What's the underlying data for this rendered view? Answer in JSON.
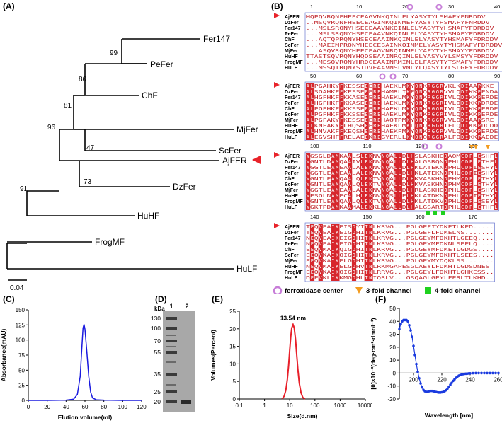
{
  "panels": {
    "A": "(A)",
    "B": "(B)",
    "C": "(C)",
    "D": "(D)",
    "E": "(E)",
    "F": "(F)"
  },
  "tree": {
    "leaves": [
      "Fer147",
      "PeFer",
      "ChF",
      "MjFer",
      "ScFer",
      "AjFER",
      "DzFer",
      "HuHF",
      "FrogMF",
      "HuLF"
    ],
    "bootstrap": [
      "99",
      "86",
      "81",
      "47",
      "96",
      "73",
      "91"
    ],
    "scale_label": "0.04",
    "highlight_color": "#e8232a"
  },
  "alignment": {
    "species": [
      "AjFER",
      "DzFer",
      "Fer147",
      "PeFer",
      "ChF",
      "ScFer",
      "MjFer",
      "HuHF",
      "FrogMF",
      "HuLF"
    ],
    "blocks": [
      {
        "positions": [
          "1",
          "10",
          "20",
          "30",
          "40"
        ],
        "rows": [
          "MQPQVRQNFHEECEAGVNKQINLELYASYTYLSMAFYFNRDDV",
          "..MSQVRQNFHEECEAGINKQINMEFYASYTYHSMAFYFNRDDV",
          "...MSLSRQNYHSECEAAVNKQINLELYASYTYHSMAFYFDRDDV",
          "...MSLSRQNYHSECEAAVNKQINLELYASYTYHSMAFYFDRDDV",
          "...AQTQPRQNYHSECEAAINKQINLELYASYTYHSMAFYFDRDDV",
          "...MAEIMPRQNYHEECESAINKQINMELYASYTYHSMAFYFDRDDV",
          "...ASQVRQNYHEECEAGVNRQINMELYAFYTYHSMAYYFDRDDV",
          "TTASTSQVRQNYHQDSEAAINRQINLELYASYVYLSMSYYFDRDDV",
          "...MESQVRQNYHRDCEAAINRMINLELFASYTYTSMAFYFDRDDV",
          "...MSSQIRQNYSTDVEAAVNSLVNLYLQASYTYLSLGFYFDRDDV"
        ]
      },
      {
        "positions": [
          "50",
          "60",
          "70",
          "80",
          "90"
        ],
        "rows": [
          "ALPGAHKYFKESSEEEREHAEKLMKYQNKRGGRVKLKDIAAPKKE",
          "ALSGAHKFFKESSEEEREHAMRLIKFQNQRGGRVVLQDIKKPENDA",
          "ALHGFHKFFKKASEEEREHAEKLMKYQNKRGGRIVLQDIKKPERDE",
          "ALHGFHKFFKKASEEEREHAEKLMKYQNKRGGRIVLQDIKKPDRDE",
          "ALPGFHKFFKKSSEEEREHAEKLMKYQNKRGGRIVLQDIKKPERDE",
          "ALPGFHKFFKKSSEEEREHAEKLMKYQNKRGGRIVLQDIKKPERDE",
          "ALPGFAKYFKESSEEEREHAQTPMKYQNKRGGRVVLQDIAAPSRE",
          "ALKNFAKYFLHQSHEEREHAEKLMKLQNQRGGRIFLQDIKKPDCDD",
          "ALHNVAKFFKEQSHEEREHAEKFMKYQNKRGGRVVLQDIKKPERDE",
          "ALEGVSHFFRELAEEKREGYERLLKMQNQRGGRALFQDIKKPAEDE"
        ]
      },
      {
        "positions": [
          "100",
          "110",
          "120",
          "130"
        ],
        "rows": [
          "WGSGLDAMKAALSLEKNVNQALLDLHSLASKHGDAQMCDFLESHFL",
          "WGNTLDAMQAAIVLEKNVNQALLDLHALGSRQNDPHLCDFLETHFL",
          "WGGTLEAMEAALALEKNVNQALLDLHKLATEKNDPHLCDFIESHYL",
          "WGGTLEAMEAALALEKNVNQALLDLHKLATEKNDPHLCDFIESHYL",
          "WGNTLEAMQAALQLEKTVNQALLDLHKVASKHNDPHMCDFLETHYL",
          "WGNTLEAMQAALQLEKTVNQALLDLHKVASKHNDPHMCDFLETHYL",
          "WGGTLEAMEAALALEKNVNQALLDLHRLASKHGDPHLCDFLESHYL",
          "WESGLNAMECALHLEKNVNQSLLELHKLATDKNDPHLCDFIETHYL",
          "WGNTLEAMQAALQLEKTVNQALLDLHKLATDKVDPHLCDFLESEYL",
          "WGKTPDAMKAAMALEKKLNQALLDLHALGSARTDPHLCDFLETHFL"
        ]
      },
      {
        "positions": [
          "140",
          "150",
          "160",
          "170"
        ],
        "rows": [
          "TEQVEAIKEISDYITNLKRVG...PGLGEFIYDKETLKED.....",
          "TEQVEAIKEIGDHITNLKRVG...PGLGEFLFDKELNS.......",
          "NEQVEAIKEIGDHITNLKRVG...PGLGEYMFDKHTLGEEQ....",
          "NEQVEAIKEIGDHITNLKRVG...PGLGEYMFDKNLSEELQ....",
          "EEQVKAIKQIGDHITNLKRVG...PGLGEYMFDKETLGDGS....",
          "EEQVKAIKQIGDHITNLKRVG...PGLGEYMFDKHTLSEES....",
          "EEQVKAIKELGDHITNLKRVG...PGLGEYMYDQKLSS.......",
          "NEQVKAIKELGDHVTNLRKMGAPESGLAEYLFDKHTLGDSDNES",
          "EEQVKAIKQIGDHITNLRRVG...PGLGEYLFDKHTLGHKESS..",
          "DEEVKLIKKMGDHLTNIQRLV...GSQAGLGEYLFERLTLKHD.."
        ]
      }
    ],
    "legend": {
      "ferroxidase": "ferroxidase center",
      "threefold": "3-fold channel",
      "fourfold": "4-fold channel",
      "ferroxidase_color": "#c77dd8",
      "threefold_color": "#f39c1f",
      "fourfold_color": "#1fd11f"
    },
    "conserved_color": "#d8262c",
    "similar_color": "#d8262c"
  },
  "chart_data": [
    {
      "type": "line",
      "panel": "C",
      "title": "",
      "xlabel": "Elution volume(ml)",
      "ylabel": "Absorbance(mAU)",
      "xlim": [
        0,
        120
      ],
      "ylim": [
        0,
        150
      ],
      "x_ticks": [
        "0",
        "20",
        "40",
        "60",
        "80",
        "100",
        "120"
      ],
      "y_ticks": [
        "0",
        "25",
        "50",
        "75",
        "100",
        "125",
        "150"
      ],
      "series": [
        {
          "color": "#1a1adf",
          "x": [
            0,
            20,
            40,
            48,
            52,
            55,
            57,
            58,
            59,
            60,
            62,
            64,
            66,
            68,
            72,
            80,
            100,
            120
          ],
          "y": [
            0,
            0,
            0.5,
            2,
            10,
            40,
            95,
            120,
            126,
            118,
            80,
            40,
            14,
            4,
            1,
            0.5,
            0,
            0
          ]
        }
      ]
    },
    {
      "type": "table",
      "panel": "D",
      "title": "",
      "lane_labels": [
        "1",
        "2"
      ],
      "marker_unit": "kDa",
      "marker_kda": [
        "130",
        "100",
        "70",
        "55",
        "35",
        "25",
        "20"
      ]
    },
    {
      "type": "line",
      "panel": "E",
      "title": "",
      "xlabel": "Size(d.nm)",
      "ylabel": "Volumes(Percent)",
      "x_scale": "log",
      "xlim": [
        0.1,
        10000
      ],
      "ylim": [
        0,
        25
      ],
      "x_ticks": [
        "0.1",
        "1",
        "10",
        "100",
        "1000",
        "10000"
      ],
      "y_ticks": [
        "0",
        "5",
        "10",
        "15",
        "20",
        "25"
      ],
      "annotation": "13.54 nm",
      "series": [
        {
          "color": "#e8202a",
          "x": [
            5.0,
            6.0,
            7.0,
            8.0,
            9.0,
            10.0,
            11.0,
            12.0,
            13.54,
            15.0,
            17.0,
            19.0,
            21.0,
            24.0,
            28.0,
            33.0,
            40.0
          ],
          "y": [
            0,
            0.8,
            2.5,
            5.5,
            9.5,
            14.0,
            17.8,
            20.2,
            21.2,
            20.3,
            17.0,
            12.5,
            8.5,
            4.5,
            1.8,
            0.4,
            0
          ]
        }
      ]
    },
    {
      "type": "line",
      "panel": "F",
      "title": "",
      "xlabel": "Wavelength [nm]",
      "ylabel": "[θ]×10⁻³(deg·cm²·dmol⁻¹)",
      "xlim": [
        190,
        260
      ],
      "ylim": [
        -20,
        50
      ],
      "x_ticks": [
        "200",
        "220",
        "240",
        "260"
      ],
      "y_ticks": [
        "-20",
        "-10",
        "0",
        "10",
        "20",
        "30",
        "40",
        "50"
      ],
      "series": [
        {
          "color": "#1a3adf",
          "x": [
            190,
            191,
            192,
            193,
            194,
            195,
            196,
            197,
            198,
            199,
            200,
            201,
            202,
            203,
            204,
            205,
            206,
            207,
            208,
            209,
            210,
            211,
            212,
            213,
            214,
            215,
            216,
            217,
            218,
            219,
            220,
            221,
            222,
            223,
            224,
            225,
            226,
            227,
            228,
            229,
            230,
            231,
            232,
            233,
            234,
            235,
            236,
            237,
            238,
            239,
            240,
            242,
            244,
            246,
            248,
            250,
            252,
            254,
            256,
            258,
            260
          ],
          "y": [
            34,
            38,
            40,
            41,
            41,
            41,
            40,
            37,
            33,
            28,
            21,
            14,
            7,
            1,
            -4,
            -8,
            -11,
            -13,
            -14,
            -14.5,
            -14.5,
            -14,
            -13.8,
            -13.8,
            -14,
            -14.3,
            -14.6,
            -14.8,
            -15,
            -15,
            -14.8,
            -14.5,
            -14,
            -13.2,
            -12,
            -10.5,
            -9,
            -7.5,
            -6,
            -4.8,
            -3.6,
            -2.7,
            -2,
            -1.5,
            -1.1,
            -0.8,
            -0.6,
            -0.5,
            -0.4,
            -0.3,
            -0.2,
            -0.1,
            0,
            0,
            0,
            0,
            0,
            0,
            0,
            0,
            0
          ]
        }
      ]
    }
  ]
}
